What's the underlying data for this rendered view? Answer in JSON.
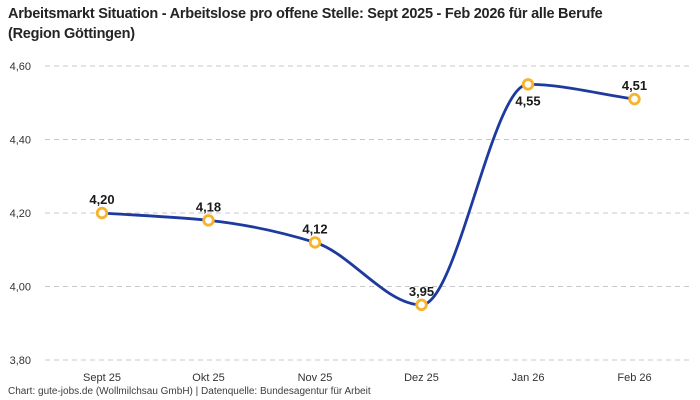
{
  "title": "Arbeitsmarkt Situation - Arbeitslose pro offene Stelle: Sept 2025 - Feb 2026 für alle Berufe (Region Göttingen)",
  "footer": {
    "credit": "Chart: gute-jobs.de (Wollmilchsau GmbH) | Datenquelle: Bundesagentur für Arbeit"
  },
  "chart_data": {
    "type": "line",
    "title": "Arbeitsmarkt Situation - Arbeitslose pro offene Stelle: Sept 2025 - Feb 2026 für alle Berufe (Region Göttingen)",
    "categories": [
      "Sept 25",
      "Okt 25",
      "Nov 25",
      "Dez 25",
      "Jan 26",
      "Feb 26"
    ],
    "values": [
      4.2,
      4.18,
      4.12,
      3.95,
      4.55,
      4.51
    ],
    "point_labels": [
      "4,20",
      "4,18",
      "4,12",
      "3,95",
      "4,55",
      "4,51"
    ],
    "point_label_positions": [
      "above",
      "above",
      "above",
      "above",
      "below",
      "above"
    ],
    "y_ticks": [
      {
        "value": 4.6,
        "label": "4,60"
      },
      {
        "value": 4.4,
        "label": "4,40"
      },
      {
        "value": 4.2,
        "label": "4,20"
      },
      {
        "value": 4.0,
        "label": "4,00"
      },
      {
        "value": 3.8,
        "label": "3,80"
      }
    ],
    "ylim": [
      3.8,
      4.6
    ],
    "xlabel": "",
    "ylabel": "",
    "grid": "horizontal-dashed",
    "legend": "none",
    "curve": "monotone-smooth",
    "colors": {
      "line": "#1d3a9e",
      "marker_stroke": "#f7b32b",
      "marker_fill": "#ffffff",
      "grid": "#c8c8c8",
      "axis_text": "#333333",
      "point_label_text": "#1a1a1a",
      "title_text": "#242424",
      "footer_text": "#3d3d3d",
      "background": "#ffffff"
    }
  }
}
